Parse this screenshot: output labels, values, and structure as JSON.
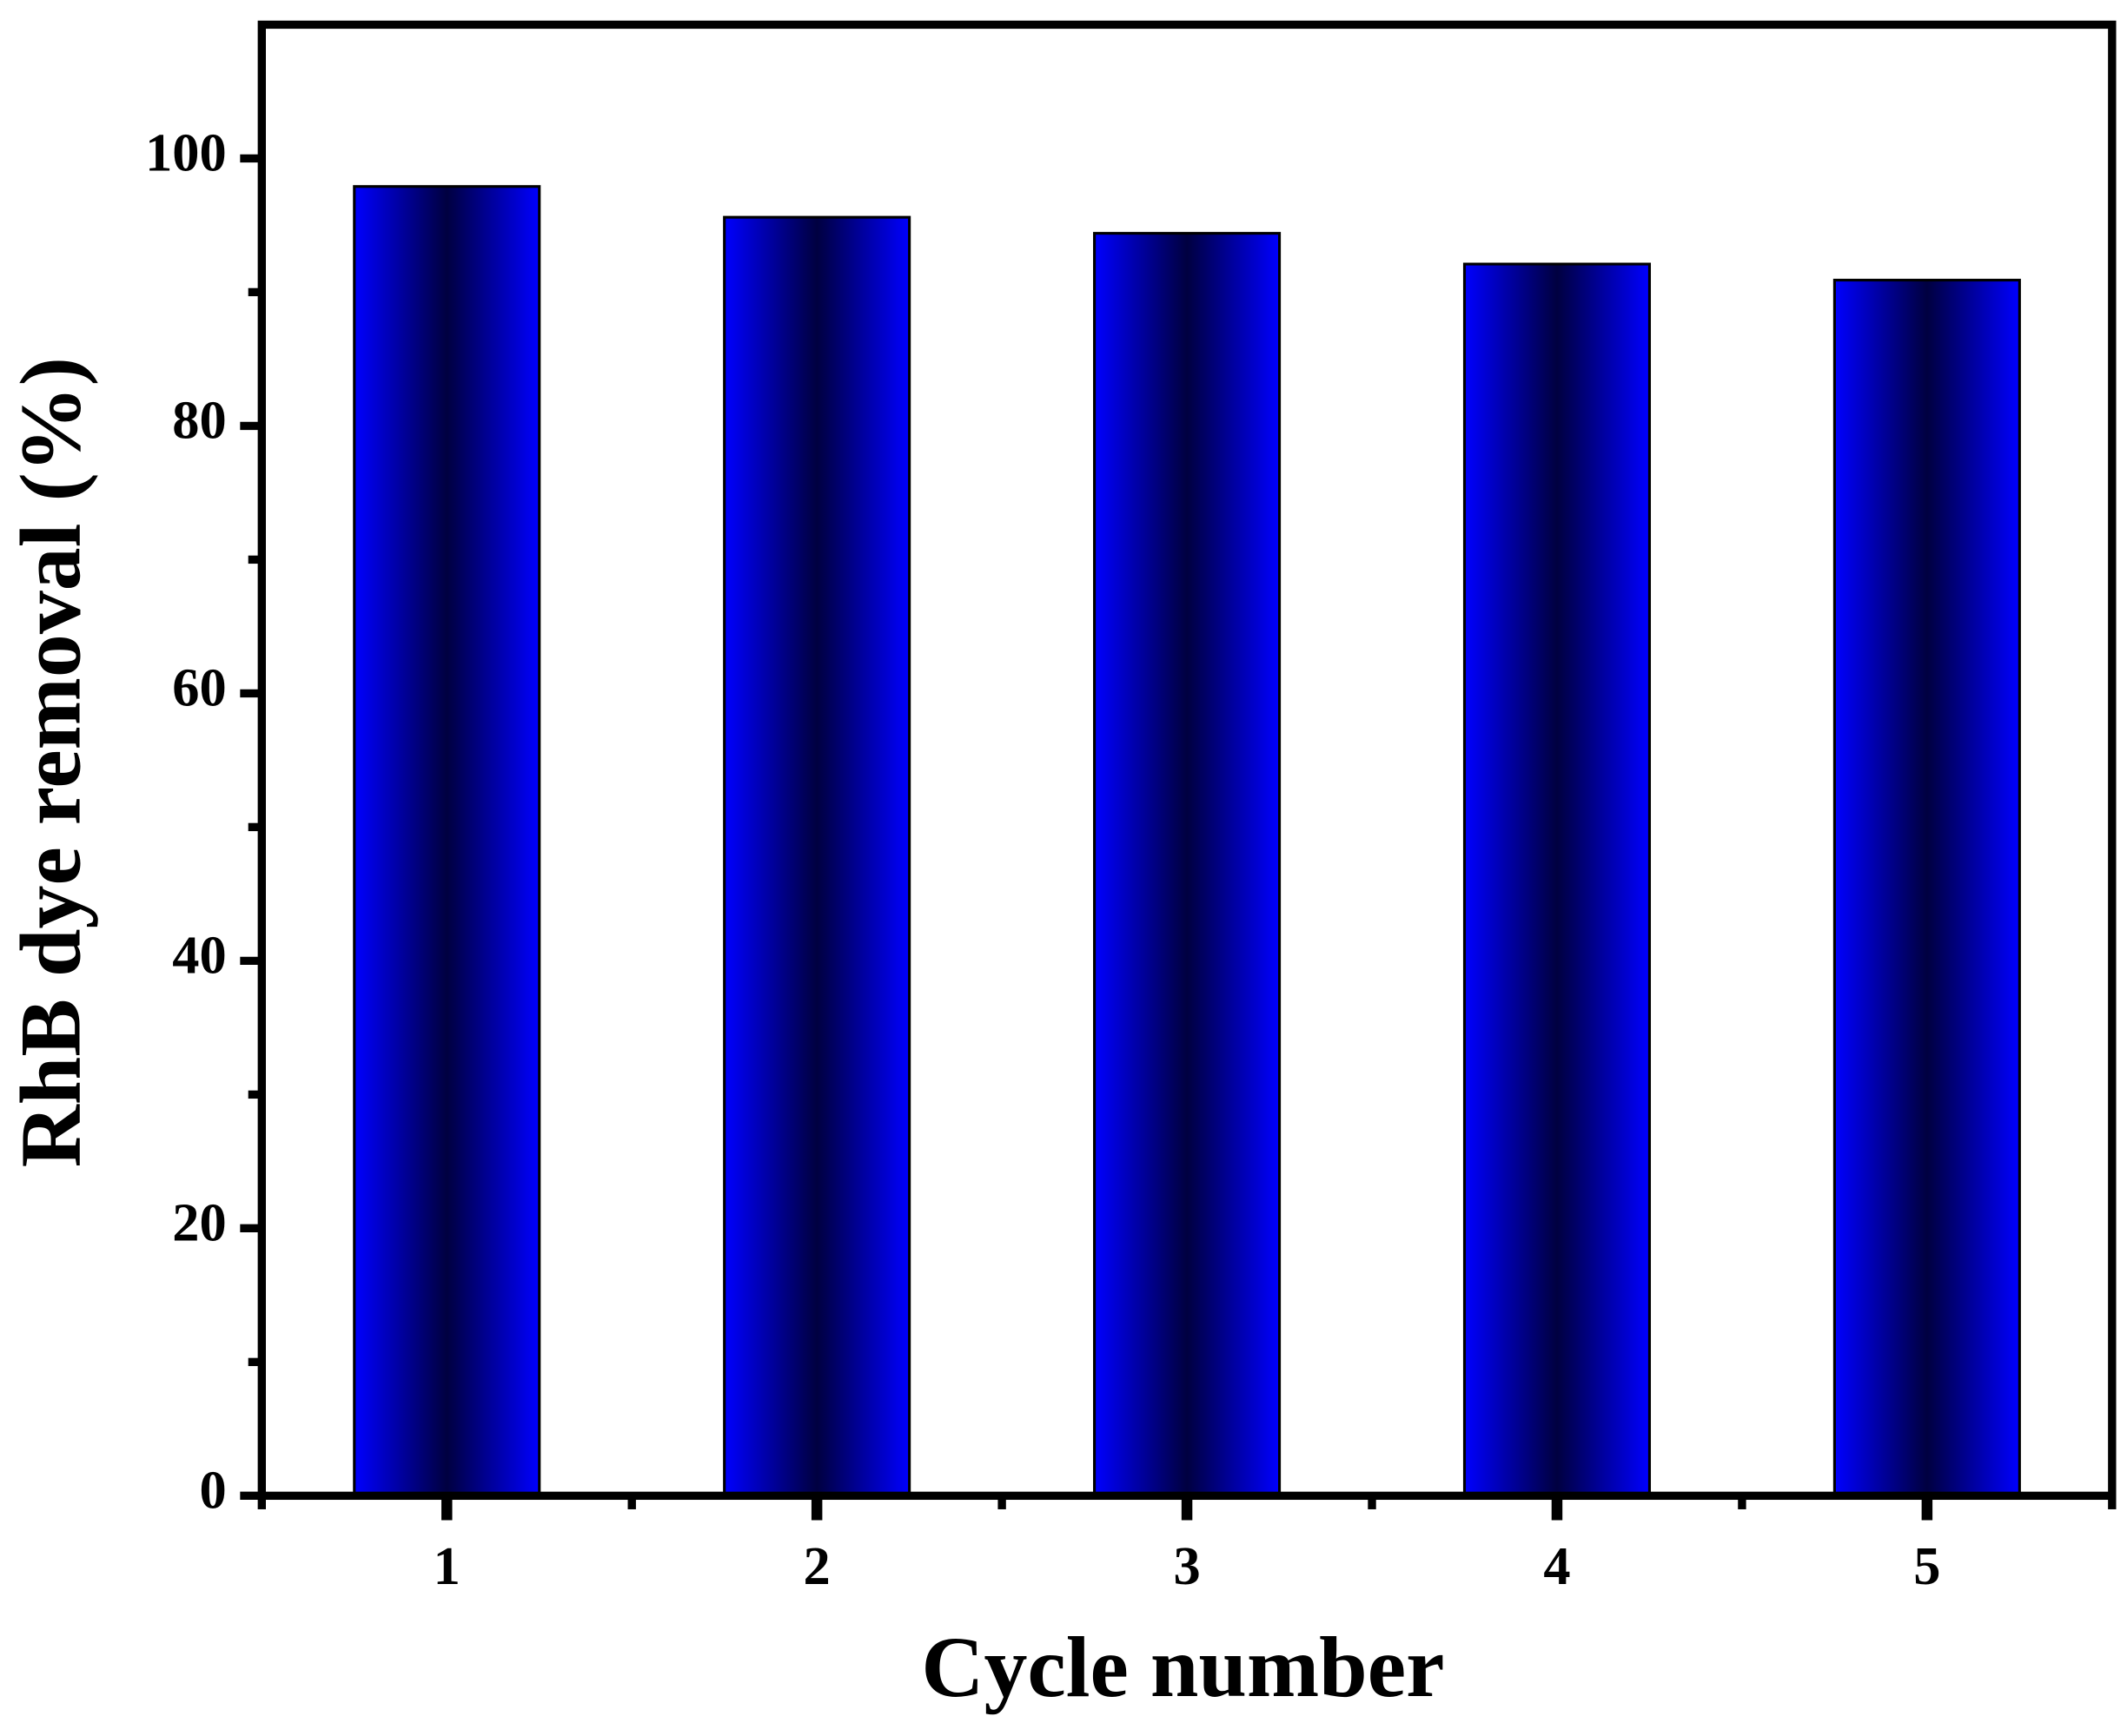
{
  "chart_data": {
    "type": "bar",
    "x_label": "Cycle number",
    "y_label": "RhB dye removal (%)",
    "categories": [
      "1",
      "2",
      "3",
      "4",
      "5"
    ],
    "values": [
      97.9,
      95.6,
      94.4,
      92.1,
      90.9
    ],
    "color": "#0000ff",
    "ylim": [
      0,
      110
    ],
    "yticks": [
      0,
      20,
      40,
      60,
      80,
      100
    ],
    "yminorticks": [
      10,
      30,
      50,
      70,
      90
    ],
    "grid": false
  }
}
